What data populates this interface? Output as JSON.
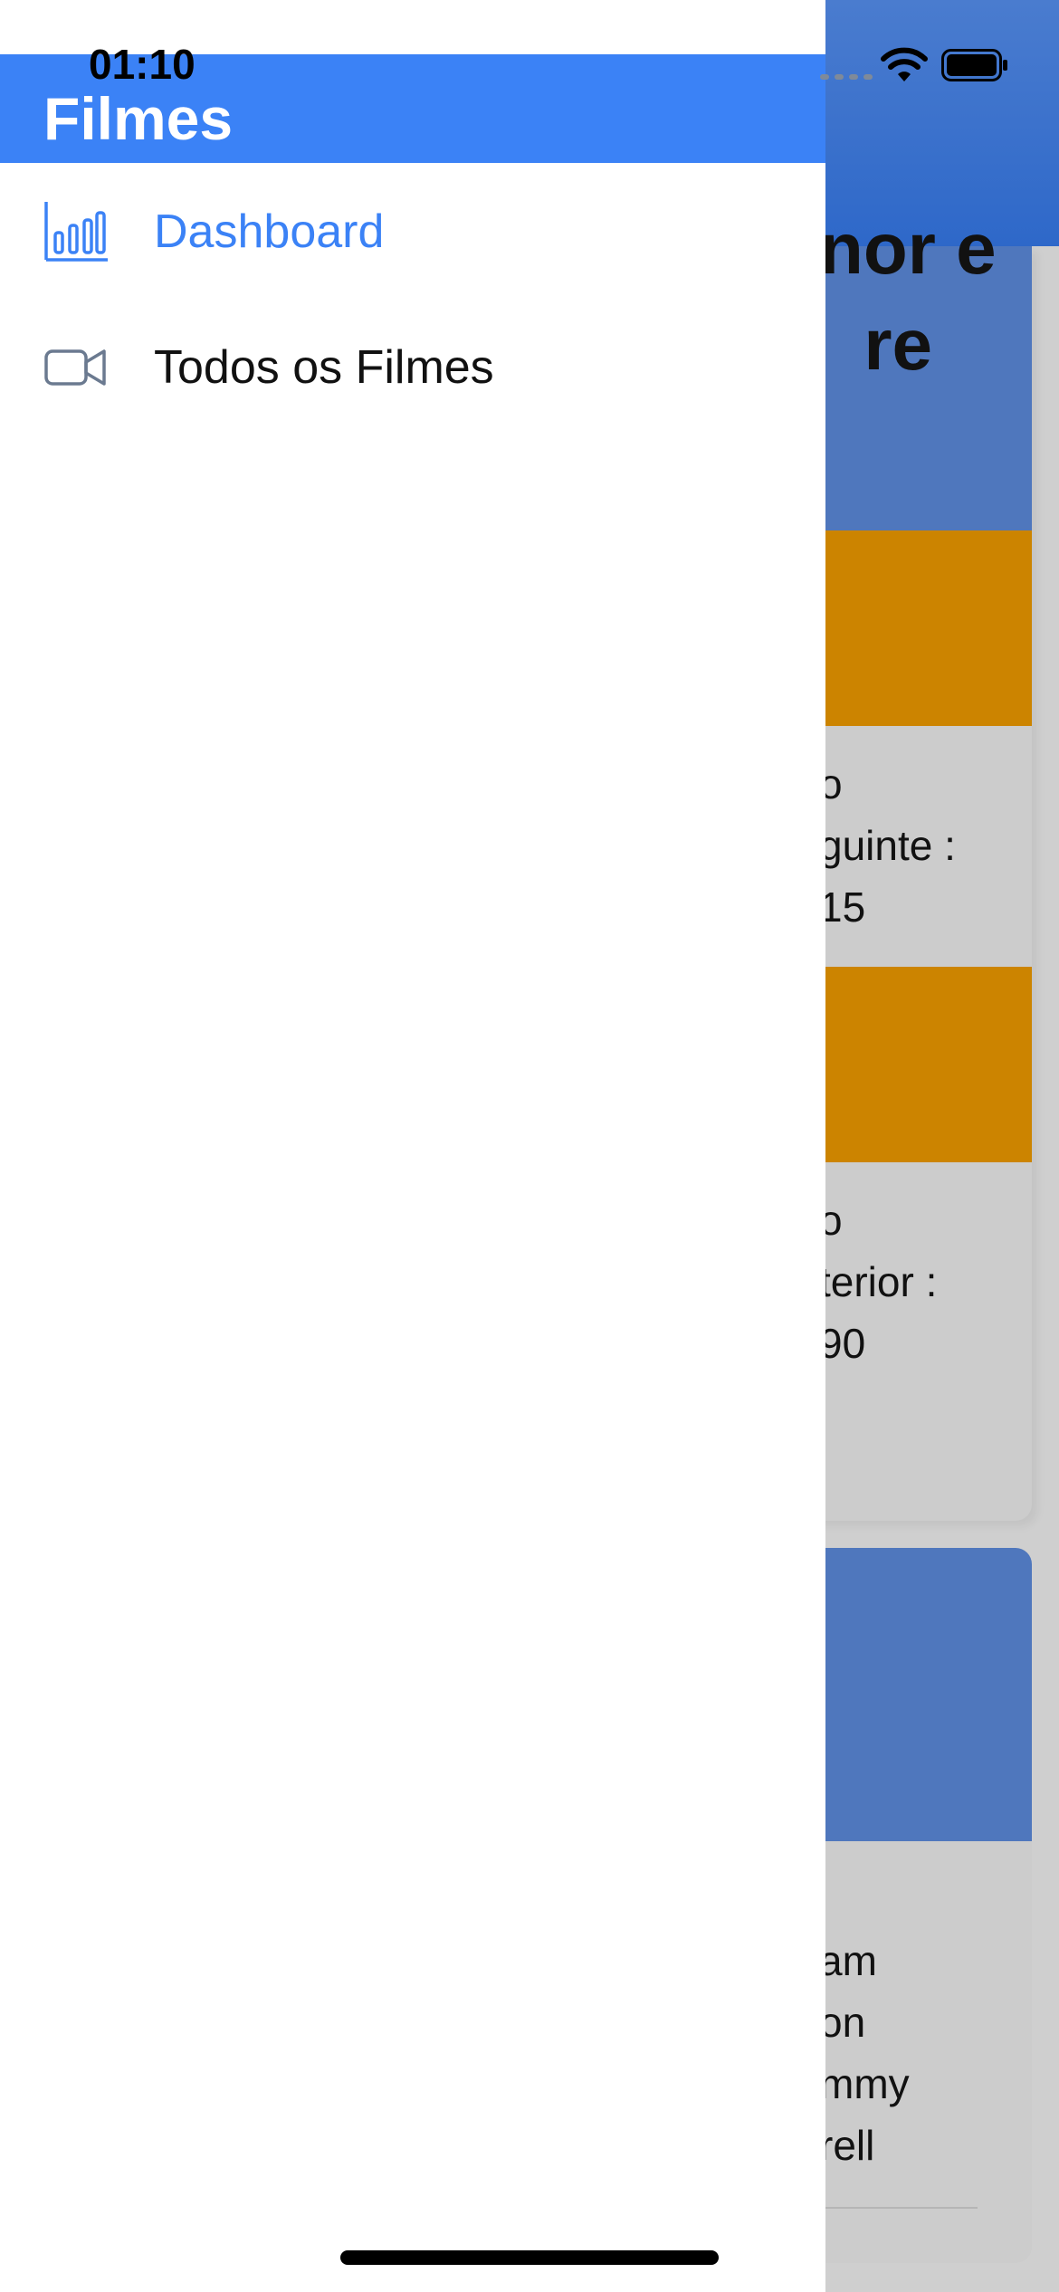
{
  "status_bar": {
    "time": "01:10"
  },
  "drawer": {
    "title": "Filmes",
    "items": [
      {
        "label": "Dashboard",
        "icon": "bar-chart-icon",
        "active": true
      },
      {
        "label": "Todos os Filmes",
        "icon": "video-camera-icon",
        "active": false
      }
    ]
  },
  "background": {
    "card_title": "nor e\nre",
    "card1_text1": "o\nguinte :\n15",
    "card1_text2": "o\nterior :\n90",
    "card2_text": "am\non\nmmy\nrell"
  },
  "colors": {
    "drawer_header": "#3b82f6",
    "active_item": "#3b82f6",
    "background_header": "#2e68c9",
    "background_orange": "#cc8400"
  }
}
